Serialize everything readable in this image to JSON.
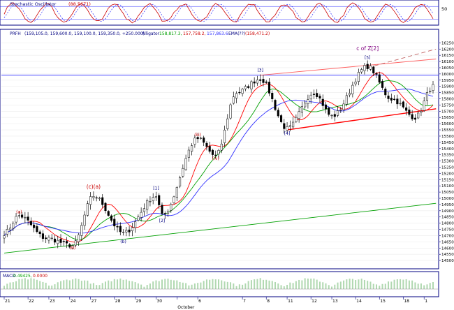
{
  "oscillator_panel": {
    "title": "Stochastic Oscillator",
    "value": "(88.5671)",
    "levels": [
      "50"
    ]
  },
  "price_panel": {
    "legend_symbol": "PRFH",
    "legend_ohlc": "(159,105.0, 159,600.0, 159,100.0, 159,350.0, +250.000)",
    "legend_ma1_name": "Alligator",
    "legend_ma1_values": "158,817.3,",
    "legend_ma2_values": "157,758.2,",
    "legend_ma3_values": "157,863.6",
    "legend_ma4_name": "EMA(??)",
    "legend_ma4_value": "(158,471.2)"
  },
  "macd_panel": {
    "label": "MACD",
    "value1": "0.49425,",
    "value2": "0.0000"
  },
  "x_axis": {
    "date_labels": [
      "21",
      "22",
      "23",
      "24",
      "27",
      "28",
      "29",
      "30",
      "October",
      "6",
      "7",
      "8",
      "11",
      "12",
      "13",
      "14",
      "15",
      "18",
      "1"
    ]
  },
  "y_axis": {
    "ticks": [
      "16250",
      "16200",
      "16150",
      "16100",
      "16050",
      "16000",
      "15950",
      "15900",
      "15850",
      "15800",
      "15750",
      "15700",
      "15650",
      "15600",
      "15550",
      "15500",
      "15450",
      "15400",
      "15350",
      "15300",
      "15250",
      "15200",
      "15150",
      "15100",
      "15050",
      "15000",
      "14950",
      "14900",
      "14850",
      "14800",
      "14750",
      "14700",
      "14650",
      "14600",
      "14550",
      "14500"
    ]
  },
  "wave_labels": [
    {
      "text": "(a)",
      "x": 5,
      "y": 14880,
      "color": "#cc0000"
    },
    {
      "text": "(b)",
      "x": 23,
      "y": 14590,
      "color": "#cc0000"
    },
    {
      "text": "(c)(a)",
      "x": 30,
      "y": 15080,
      "color": "#cc0000"
    },
    {
      "text": "(b)",
      "x": 40,
      "y": 14640,
      "color": "#000080"
    },
    {
      "text": "[1]",
      "x": 51,
      "y": 15070,
      "color": "#000080"
    },
    {
      "text": "[2]",
      "x": 53,
      "y": 14810,
      "color": "#000080"
    },
    {
      "text": "(iii)",
      "x": 65,
      "y": 15500,
      "color": "#cc0000"
    },
    {
      "text": "(iv)",
      "x": 71,
      "y": 15310,
      "color": "#cc0000"
    },
    {
      "text": "[3]",
      "x": 86,
      "y": 16020,
      "color": "#000080"
    },
    {
      "text": "[4]",
      "x": 95,
      "y": 15510,
      "color": "#000080"
    },
    {
      "text": "[5]",
      "x": 122,
      "y": 16120,
      "color": "#000080"
    },
    {
      "text": "c of Z[2]",
      "x": 122,
      "y": 16190,
      "color": "#800080"
    }
  ],
  "chart_data": {
    "type": "candlestick",
    "title": "",
    "xlabel": "",
    "ylabel": "",
    "ylim": [
      14450,
      16280
    ],
    "x_axis_labels": [
      "21",
      "22",
      "23",
      "24",
      "27",
      "28",
      "29",
      "30",
      "October",
      "6",
      "7",
      "8",
      "11",
      "12",
      "13",
      "14",
      "15",
      "18",
      "1"
    ],
    "sessions": 145,
    "key_points": [
      {
        "x": 0,
        "close": 14720
      },
      {
        "x": 5,
        "close": 14860
      },
      {
        "x": 14,
        "close": 14680
      },
      {
        "x": 23,
        "close": 14620
      },
      {
        "x": 30,
        "close": 15020
      },
      {
        "x": 40,
        "close": 14720
      },
      {
        "x": 51,
        "close": 15020
      },
      {
        "x": 53,
        "close": 14860
      },
      {
        "x": 65,
        "close": 15480
      },
      {
        "x": 71,
        "close": 15340
      },
      {
        "x": 78,
        "close": 15850
      },
      {
        "x": 86,
        "close": 15960
      },
      {
        "x": 95,
        "close": 15560
      },
      {
        "x": 104,
        "close": 15850
      },
      {
        "x": 110,
        "close": 15660
      },
      {
        "x": 122,
        "close": 16060
      },
      {
        "x": 130,
        "close": 15800
      },
      {
        "x": 138,
        "close": 15650
      },
      {
        "x": 144,
        "close": 15900
      }
    ],
    "horizontal_line": 15990,
    "trendlines": [
      {
        "name": "upper channel",
        "color": "#ff6060",
        "x1": 86,
        "y1": 15990,
        "x2": 145,
        "y2": 16120
      },
      {
        "name": "dashed extension",
        "color": "#c06060",
        "x1": 122,
        "y1": 16050,
        "x2": 145,
        "y2": 16200
      },
      {
        "name": "lower channel",
        "color": "#ff0000",
        "x1": 95,
        "y1": 15550,
        "x2": 145,
        "y2": 15720
      },
      {
        "name": "long-term support",
        "color": "#00a000",
        "x1": 0,
        "y1": 14560,
        "x2": 145,
        "y2": 14960
      }
    ],
    "moving_averages": [
      {
        "color": "#ff0000",
        "lag": 4
      },
      {
        "color": "#00a000",
        "lag": 7
      },
      {
        "color": "#3030ff",
        "lag": 11
      }
    ],
    "stochastic": {
      "ylim": [
        0,
        100
      ],
      "reference_level": 50
    },
    "macd_histogram": {
      "color": "#b0d8b0"
    }
  }
}
